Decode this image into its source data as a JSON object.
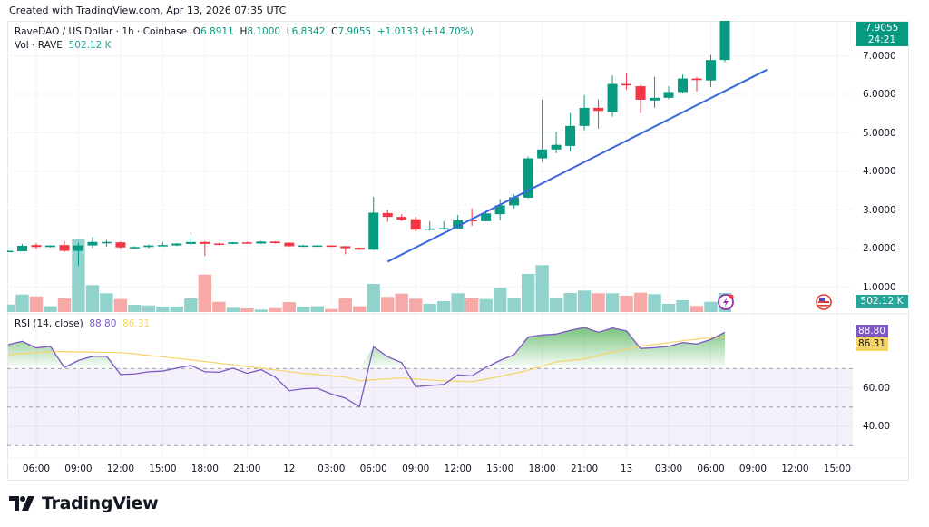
{
  "created_text": "Created with TradingView.com, Apr 13, 2026 07:35 UTC",
  "legend": {
    "symbol": "RaveDAO / US Dollar · 1h · Coinbase",
    "o_label": "O",
    "o": "6.8911",
    "h_label": "H",
    "h": "8.1000",
    "l_label": "L",
    "l": "6.8342",
    "c_label": "C",
    "c": "7.9055",
    "change": "+1.0133 (+14.70%)"
  },
  "volume_legend": {
    "label": "Vol · RAVE",
    "value": "502.12 K"
  },
  "rsi_legend": {
    "label": "RSI (14, close)",
    "rsi": "88.80",
    "ma": "86.31"
  },
  "price_label": {
    "price": "7.9055",
    "countdown": "24:21"
  },
  "volume_label": "502.12 K",
  "rsi_labels": {
    "rsi": "88.80",
    "ma": "86.31"
  },
  "price_axis": [
    "7.0000",
    "6.0000",
    "5.0000",
    "4.0000",
    "3.0000",
    "2.0000",
    "1.0000"
  ],
  "rsi_axis": [
    "60.00",
    "40.00"
  ],
  "time_axis": [
    "06:00",
    "09:00",
    "12:00",
    "15:00",
    "18:00",
    "21:00",
    "12",
    "03:00",
    "06:00",
    "09:00",
    "12:00",
    "15:00",
    "18:00",
    "21:00",
    "13",
    "03:00",
    "06:00",
    "09:00",
    "12:00",
    "15:00"
  ],
  "footer_logo": "TradingView",
  "icons": {
    "lightning": "lightning-icon",
    "flag": "us-flag-icon",
    "logo": "tradingview-logo-icon"
  },
  "colors": {
    "up": "#089981",
    "down": "#f23645",
    "vol_up": "#92d2cc",
    "vol_down": "#f7a9a7",
    "rsi": "#7e57c2",
    "rsi_ma": "#f5d565",
    "trendline": "#3a66e0"
  },
  "chart_data": [
    {
      "type": "candlestick",
      "title": "RaveDAO / US Dollar · 1h · Coinbase",
      "ylim": [
        0.7,
        8.1
      ],
      "x": [
        "Apr 11 04:00",
        "Apr 11 05:00",
        "Apr 11 06:00",
        "Apr 11 07:00",
        "Apr 11 08:00",
        "Apr 11 09:00",
        "Apr 11 10:00",
        "Apr 11 11:00",
        "Apr 11 12:00",
        "Apr 11 13:00",
        "Apr 11 14:00",
        "Apr 11 15:00",
        "Apr 11 16:00",
        "Apr 11 17:00",
        "Apr 11 18:00",
        "Apr 11 19:00",
        "Apr 11 20:00",
        "Apr 11 21:00",
        "Apr 11 22:00",
        "Apr 11 23:00",
        "Apr 12 00:00",
        "Apr 12 01:00",
        "Apr 12 02:00",
        "Apr 12 03:00",
        "Apr 12 04:00",
        "Apr 12 05:00",
        "Apr 12 06:00",
        "Apr 12 07:00",
        "Apr 12 08:00",
        "Apr 12 09:00",
        "Apr 12 10:00",
        "Apr 12 11:00",
        "Apr 12 12:00",
        "Apr 12 13:00",
        "Apr 12 14:00",
        "Apr 12 15:00",
        "Apr 12 16:00",
        "Apr 12 17:00",
        "Apr 12 18:00",
        "Apr 12 19:00",
        "Apr 12 20:00",
        "Apr 12 21:00",
        "Apr 12 22:00",
        "Apr 12 23:00",
        "Apr 13 00:00",
        "Apr 13 01:00",
        "Apr 13 02:00",
        "Apr 13 03:00",
        "Apr 13 04:00",
        "Apr 13 05:00",
        "Apr 13 06:00",
        "Apr 13 07:00"
      ],
      "ohlc": [
        [
          1.92,
          1.95,
          1.91,
          1.94
        ],
        [
          1.93,
          2.12,
          1.93,
          2.07
        ],
        [
          2.09,
          2.14,
          1.99,
          2.04
        ],
        [
          2.04,
          2.08,
          2.03,
          2.08
        ],
        [
          2.09,
          2.2,
          1.91,
          1.94
        ],
        [
          1.94,
          2.15,
          1.55,
          2.08
        ],
        [
          2.08,
          2.3,
          2.02,
          2.17
        ],
        [
          2.15,
          2.22,
          2.05,
          2.17
        ],
        [
          2.16,
          2.19,
          1.99,
          2.03
        ],
        [
          2.02,
          2.06,
          2.0,
          2.04
        ],
        [
          2.04,
          2.1,
          2.01,
          2.08
        ],
        [
          2.08,
          2.16,
          2.06,
          2.09
        ],
        [
          2.08,
          2.14,
          2.06,
          2.13
        ],
        [
          2.12,
          2.27,
          2.1,
          2.17
        ],
        [
          2.17,
          2.19,
          1.81,
          2.12
        ],
        [
          2.13,
          2.15,
          2.08,
          2.11
        ],
        [
          2.12,
          2.17,
          2.11,
          2.16
        ],
        [
          2.16,
          2.18,
          2.12,
          2.13
        ],
        [
          2.13,
          2.2,
          2.12,
          2.18
        ],
        [
          2.18,
          2.19,
          2.13,
          2.14
        ],
        [
          2.15,
          2.16,
          2.05,
          2.06
        ],
        [
          2.07,
          2.1,
          2.04,
          2.08
        ],
        [
          2.07,
          2.09,
          2.06,
          2.08
        ],
        [
          2.08,
          2.09,
          2.04,
          2.05
        ],
        [
          2.06,
          2.07,
          1.85,
          2.01
        ],
        [
          2.02,
          2.03,
          1.96,
          1.97
        ],
        [
          1.97,
          3.34,
          1.96,
          2.93
        ],
        [
          2.92,
          3.0,
          2.69,
          2.82
        ],
        [
          2.82,
          2.89,
          2.71,
          2.75
        ],
        [
          2.76,
          2.82,
          2.45,
          2.49
        ],
        [
          2.49,
          2.71,
          2.46,
          2.52
        ],
        [
          2.5,
          2.71,
          2.48,
          2.53
        ],
        [
          2.52,
          2.87,
          2.51,
          2.73
        ],
        [
          2.74,
          3.04,
          2.59,
          2.71
        ],
        [
          2.71,
          2.97,
          2.7,
          2.91
        ],
        [
          2.89,
          3.28,
          2.73,
          3.12
        ],
        [
          3.12,
          3.4,
          3.04,
          3.33
        ],
        [
          3.32,
          4.39,
          3.3,
          4.34
        ],
        [
          4.34,
          5.86,
          4.25,
          4.57
        ],
        [
          4.57,
          5.02,
          4.47,
          4.69
        ],
        [
          4.66,
          5.51,
          4.52,
          5.18
        ],
        [
          5.18,
          5.98,
          5.07,
          5.65
        ],
        [
          5.65,
          5.87,
          5.11,
          5.57
        ],
        [
          5.54,
          6.49,
          5.42,
          6.27
        ],
        [
          6.27,
          6.56,
          6.12,
          6.23
        ],
        [
          6.21,
          6.25,
          5.51,
          5.86
        ],
        [
          5.84,
          6.45,
          5.65,
          5.91
        ],
        [
          5.91,
          6.21,
          5.87,
          6.06
        ],
        [
          6.06,
          6.51,
          6.03,
          6.41
        ],
        [
          6.41,
          6.45,
          6.08,
          6.37
        ],
        [
          6.36,
          7.02,
          6.19,
          6.89
        ],
        [
          6.8911,
          8.1,
          6.8342,
          7.9055
        ]
      ],
      "volume_k": [
        198,
        461,
        413,
        151,
        359,
        1912,
        710,
        495,
        342,
        191,
        174,
        143,
        143,
        359,
        987,
        270,
        112,
        96,
        65,
        103,
        263,
        136,
        151,
        79,
        375,
        151,
        741,
        399,
        485,
        351,
        215,
        287,
        495,
        359,
        342,
        638,
        382,
        1004,
        1236,
        382,
        502,
        566,
        495,
        495,
        430,
        509,
        471,
        215,
        311,
        160,
        270,
        502.12
      ],
      "trendline": [
        {
          "time": "Apr 12 07:00",
          "price": 1.66
        },
        {
          "time": "Apr 13 10:00",
          "price": 6.64
        }
      ],
      "last_price": 7.9055
    },
    {
      "type": "line",
      "title": "RSI (14, close)",
      "ylim": [
        25,
        95
      ],
      "bands": {
        "upper": 70,
        "middle": 50,
        "lower": 30
      },
      "series": [
        {
          "name": "RSI",
          "values": [
            82.4,
            84.1,
            80.7,
            81.5,
            70.5,
            74.2,
            76.3,
            76.4,
            66.9,
            67.2,
            68.3,
            68.7,
            70.2,
            71.6,
            68.3,
            68.1,
            70.2,
            67.5,
            69.4,
            65.6,
            58.5,
            59.5,
            59.8,
            56.8,
            54.6,
            50.2,
            81.3,
            76.1,
            73.1,
            60.6,
            61.2,
            61.7,
            66.7,
            66.2,
            70.6,
            74.2,
            77.2,
            86.3,
            87.4,
            87.9,
            89.8,
            91.3,
            88.8,
            91.0,
            89.5,
            80.4,
            80.8,
            81.5,
            83.5,
            82.7,
            85.1,
            88.8
          ]
        },
        {
          "name": "MA",
          "values": [
            77.2,
            77.7,
            78.3,
            78.8,
            78.8,
            78.6,
            78.5,
            78.4,
            78.3,
            77.6,
            76.8,
            76.1,
            75.3,
            74.5,
            73.6,
            72.8,
            71.9,
            71.0,
            70.2,
            69.3,
            68.4,
            67.5,
            66.9,
            66.2,
            65.6,
            63.6,
            64.2,
            64.6,
            65.1,
            64.6,
            64.1,
            63.6,
            63.4,
            63.1,
            64.5,
            65.9,
            67.5,
            69.1,
            71.3,
            73.5,
            74.2,
            75.0,
            76.8,
            78.5,
            80.0,
            81.6,
            82.5,
            83.4,
            84.4,
            85.2,
            86.0,
            86.3
          ]
        }
      ]
    }
  ]
}
